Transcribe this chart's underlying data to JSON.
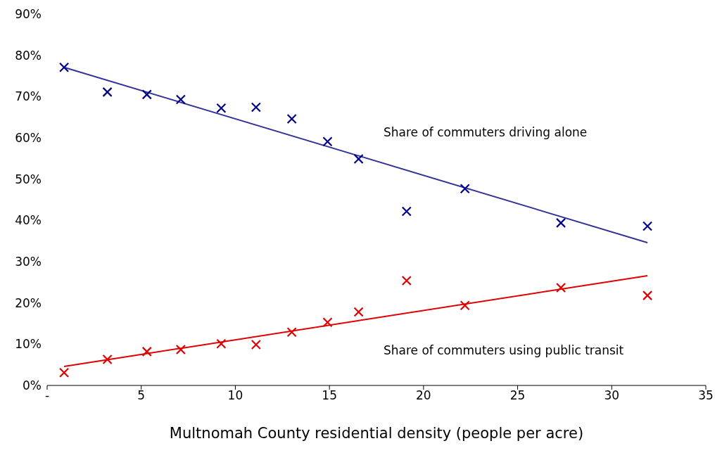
{
  "chart_data": {
    "type": "scatter",
    "xlabel": "Multnomah County residential density (people per acre)",
    "xlim": [
      0,
      35
    ],
    "xticks": [
      {
        "value": 0,
        "label": "-"
      },
      5,
      10,
      15,
      20,
      25,
      30,
      35
    ],
    "ylim": [
      0,
      90
    ],
    "yticks": [
      {
        "value": 0,
        "label": "0%"
      },
      {
        "value": 10,
        "label": "10%"
      },
      {
        "value": 20,
        "label": "20%"
      },
      {
        "value": 30,
        "label": "30%"
      },
      {
        "value": 40,
        "label": "40%"
      },
      {
        "value": 50,
        "label": "50%"
      },
      {
        "value": 60,
        "label": "60%"
      },
      {
        "value": 70,
        "label": "70%"
      },
      {
        "value": 80,
        "label": "80%"
      },
      {
        "value": 90,
        "label": "90%"
      }
    ],
    "grid": false,
    "legend": false,
    "marker": "cross",
    "tick_labels": "xy",
    "series": [
      {
        "color": "#00008b",
        "x": [
          0.9,
          3.2,
          5.3,
          7.1,
          9.25,
          11.1,
          13.0,
          14.9,
          16.55,
          19.1,
          22.2,
          27.3,
          31.9
        ],
        "values": [
          77.1,
          71.1,
          70.5,
          69.3,
          67.2,
          67.4,
          64.6,
          59.1,
          54.9,
          42.2,
          47.7,
          39.4,
          38.6
        ]
      },
      {
        "color": "#e00000",
        "x": [
          0.9,
          3.2,
          5.3,
          7.1,
          9.25,
          11.1,
          13.0,
          14.9,
          16.55,
          19.1,
          22.2,
          27.3,
          31.9
        ],
        "values": [
          3.1,
          6.3,
          8.2,
          8.7,
          10.1,
          9.9,
          12.9,
          15.3,
          17.8,
          25.4,
          19.4,
          23.7,
          21.8
        ]
      },
      {
        "type": "line",
        "marker": "none",
        "color": "#333399",
        "x": [
          0.9,
          31.9
        ],
        "values": [
          77.1,
          34.6
        ]
      },
      {
        "type": "line",
        "marker": "none",
        "color": "#e00000",
        "x": [
          0.9,
          31.9
        ],
        "values": [
          4.6,
          26.6
        ]
      }
    ],
    "annotations": [
      "Share of commuters driving alone",
      "Share of commuters using public transit"
    ]
  }
}
